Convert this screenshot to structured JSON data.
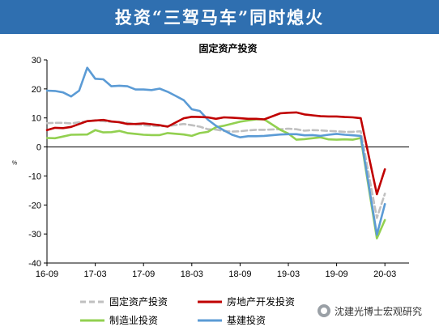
{
  "banner": {
    "title": "投资“三驾马车”同时熄火"
  },
  "watermark": {
    "text": "沈建光博士宏观研究"
  },
  "chart_data": {
    "type": "line",
    "title": "固定资产投资",
    "ylabel": "%",
    "xlabel": "",
    "ylim": [
      -40,
      30
    ],
    "yticks": [
      -40,
      -30,
      -20,
      -10,
      0,
      10,
      20,
      30
    ],
    "xlim": [
      "2016-09",
      "2020-06"
    ],
    "xticks": [
      "16-09",
      "17-03",
      "17-09",
      "18-03",
      "18-09",
      "19-03",
      "19-09",
      "20-03"
    ],
    "grid": false,
    "legend": "bottom",
    "series": [
      {
        "name": "固定资产投资",
        "color": "#c0c0c0",
        "dash": true,
        "points": [
          [
            "2016-09",
            8.2
          ],
          [
            "2016-10",
            8.3
          ],
          [
            "2016-11",
            8.3
          ],
          [
            "2016-12",
            8.1
          ],
          [
            "2017-02",
            8.9
          ],
          [
            "2017-03",
            9.2
          ],
          [
            "2017-04",
            8.9
          ],
          [
            "2017-05",
            8.6
          ],
          [
            "2017-06",
            8.6
          ],
          [
            "2017-07",
            8.3
          ],
          [
            "2017-08",
            7.8
          ],
          [
            "2017-09",
            7.5
          ],
          [
            "2017-10",
            7.3
          ],
          [
            "2017-11",
            7.2
          ],
          [
            "2017-12",
            7.2
          ],
          [
            "2018-02",
            7.9
          ],
          [
            "2018-03",
            7.5
          ],
          [
            "2018-04",
            7.0
          ],
          [
            "2018-05",
            6.1
          ],
          [
            "2018-06",
            6.0
          ],
          [
            "2018-07",
            5.5
          ],
          [
            "2018-08",
            5.3
          ],
          [
            "2018-09",
            5.4
          ],
          [
            "2018-10",
            5.7
          ],
          [
            "2018-11",
            5.9
          ],
          [
            "2018-12",
            5.9
          ],
          [
            "2019-02",
            6.1
          ],
          [
            "2019-03",
            6.3
          ],
          [
            "2019-04",
            6.1
          ],
          [
            "2019-05",
            5.6
          ],
          [
            "2019-06",
            5.8
          ],
          [
            "2019-07",
            5.7
          ],
          [
            "2019-08",
            5.5
          ],
          [
            "2019-09",
            5.4
          ],
          [
            "2019-10",
            5.2
          ],
          [
            "2019-11",
            5.2
          ],
          [
            "2019-12",
            5.4
          ],
          [
            "2020-02",
            -24.5
          ],
          [
            "2020-03",
            -16.1
          ]
        ]
      },
      {
        "name": "房地产开发投资",
        "color": "#c00000",
        "dash": false,
        "points": [
          [
            "2016-09",
            5.8
          ],
          [
            "2016-10",
            6.6
          ],
          [
            "2016-11",
            6.5
          ],
          [
            "2016-12",
            6.9
          ],
          [
            "2017-02",
            8.9
          ],
          [
            "2017-03",
            9.1
          ],
          [
            "2017-04",
            9.3
          ],
          [
            "2017-05",
            8.8
          ],
          [
            "2017-06",
            8.5
          ],
          [
            "2017-07",
            7.9
          ],
          [
            "2017-08",
            7.9
          ],
          [
            "2017-09",
            8.1
          ],
          [
            "2017-10",
            7.8
          ],
          [
            "2017-11",
            7.5
          ],
          [
            "2017-12",
            7.0
          ],
          [
            "2018-02",
            9.9
          ],
          [
            "2018-03",
            10.4
          ],
          [
            "2018-04",
            10.3
          ],
          [
            "2018-05",
            10.2
          ],
          [
            "2018-06",
            9.7
          ],
          [
            "2018-07",
            10.2
          ],
          [
            "2018-08",
            10.1
          ],
          [
            "2018-09",
            9.9
          ],
          [
            "2018-10",
            9.7
          ],
          [
            "2018-11",
            9.7
          ],
          [
            "2018-12",
            9.5
          ],
          [
            "2019-02",
            11.6
          ],
          [
            "2019-03",
            11.8
          ],
          [
            "2019-04",
            11.9
          ],
          [
            "2019-05",
            11.2
          ],
          [
            "2019-06",
            10.9
          ],
          [
            "2019-07",
            10.6
          ],
          [
            "2019-08",
            10.5
          ],
          [
            "2019-09",
            10.5
          ],
          [
            "2019-10",
            10.3
          ],
          [
            "2019-11",
            10.2
          ],
          [
            "2019-12",
            9.9
          ],
          [
            "2020-02",
            -16.3
          ],
          [
            "2020-03",
            -7.7
          ]
        ]
      },
      {
        "name": "制造业投资",
        "color": "#92d050",
        "dash": false,
        "points": [
          [
            "2016-09",
            3.1
          ],
          [
            "2016-10",
            3.0
          ],
          [
            "2016-11",
            3.6
          ],
          [
            "2016-12",
            4.2
          ],
          [
            "2017-02",
            4.3
          ],
          [
            "2017-03",
            5.8
          ],
          [
            "2017-04",
            5.0
          ],
          [
            "2017-05",
            5.1
          ],
          [
            "2017-06",
            5.5
          ],
          [
            "2017-07",
            4.8
          ],
          [
            "2017-08",
            4.5
          ],
          [
            "2017-09",
            4.2
          ],
          [
            "2017-10",
            4.1
          ],
          [
            "2017-11",
            4.1
          ],
          [
            "2017-12",
            4.8
          ],
          [
            "2018-02",
            4.3
          ],
          [
            "2018-03",
            3.8
          ],
          [
            "2018-04",
            4.8
          ],
          [
            "2018-05",
            5.2
          ],
          [
            "2018-06",
            6.8
          ],
          [
            "2018-07",
            7.3
          ],
          [
            "2018-08",
            8.0
          ],
          [
            "2018-09",
            8.7
          ],
          [
            "2018-10",
            9.1
          ],
          [
            "2018-11",
            9.5
          ],
          [
            "2018-12",
            9.5
          ],
          [
            "2019-02",
            5.9
          ],
          [
            "2019-03",
            4.6
          ],
          [
            "2019-04",
            2.5
          ],
          [
            "2019-05",
            2.7
          ],
          [
            "2019-06",
            3.0
          ],
          [
            "2019-07",
            3.3
          ],
          [
            "2019-08",
            2.6
          ],
          [
            "2019-09",
            2.5
          ],
          [
            "2019-10",
            2.6
          ],
          [
            "2019-11",
            2.5
          ],
          [
            "2019-12",
            3.1
          ],
          [
            "2020-02",
            -31.5
          ],
          [
            "2020-03",
            -25.2
          ]
        ]
      },
      {
        "name": "基建投资",
        "color": "#5b9bd5",
        "dash": false,
        "points": [
          [
            "2016-09",
            19.4
          ],
          [
            "2016-10",
            19.3
          ],
          [
            "2016-11",
            18.8
          ],
          [
            "2016-12",
            17.4
          ],
          [
            "2017-01",
            19.4
          ],
          [
            "2017-02",
            27.3
          ],
          [
            "2017-03",
            23.5
          ],
          [
            "2017-04",
            23.3
          ],
          [
            "2017-05",
            20.9
          ],
          [
            "2017-06",
            21.1
          ],
          [
            "2017-07",
            20.9
          ],
          [
            "2017-08",
            19.8
          ],
          [
            "2017-09",
            19.8
          ],
          [
            "2017-10",
            19.6
          ],
          [
            "2017-11",
            20.1
          ],
          [
            "2017-12",
            19.0
          ],
          [
            "2018-01",
            17.6
          ],
          [
            "2018-02",
            16.1
          ],
          [
            "2018-03",
            13.0
          ],
          [
            "2018-04",
            12.4
          ],
          [
            "2018-05",
            9.4
          ],
          [
            "2018-06",
            7.3
          ],
          [
            "2018-07",
            5.7
          ],
          [
            "2018-08",
            4.2
          ],
          [
            "2018-09",
            3.3
          ],
          [
            "2018-10",
            3.7
          ],
          [
            "2018-11",
            3.7
          ],
          [
            "2018-12",
            3.8
          ],
          [
            "2019-02",
            4.3
          ],
          [
            "2019-03",
            4.4
          ],
          [
            "2019-04",
            4.4
          ],
          [
            "2019-05",
            4.0
          ],
          [
            "2019-06",
            4.1
          ],
          [
            "2019-07",
            3.8
          ],
          [
            "2019-08",
            4.2
          ],
          [
            "2019-09",
            4.5
          ],
          [
            "2019-10",
            4.2
          ],
          [
            "2019-11",
            4.0
          ],
          [
            "2019-12",
            3.8
          ],
          [
            "2020-02",
            -30.3
          ],
          [
            "2020-03",
            -19.7
          ]
        ]
      }
    ]
  }
}
